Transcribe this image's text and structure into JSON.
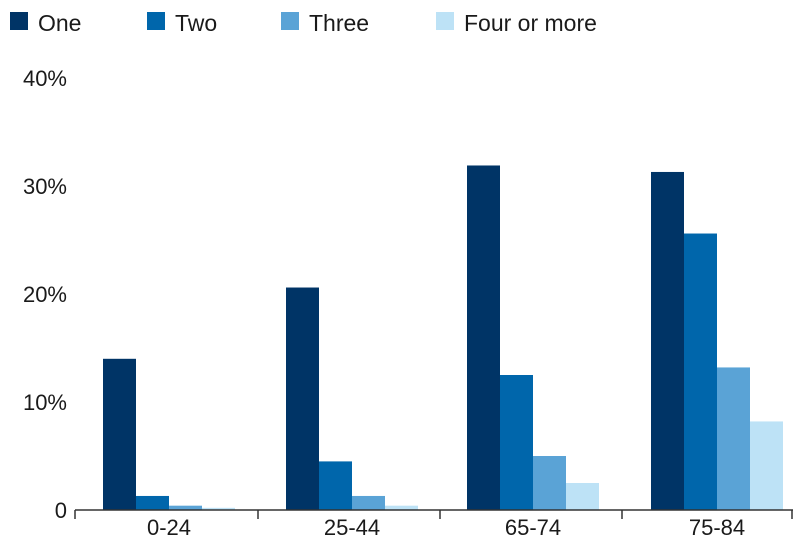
{
  "chart_data": {
    "type": "bar",
    "title": "",
    "xlabel": "",
    "ylabel": "",
    "categories": [
      "0-24",
      "25-44",
      "65-74",
      "75-84"
    ],
    "series": [
      {
        "name": "One",
        "color": "#003466",
        "values": [
          14,
          20.6,
          31.9,
          31.3
        ]
      },
      {
        "name": "Two",
        "color": "#0066ab",
        "values": [
          1.3,
          4.5,
          12.5,
          25.6
        ]
      },
      {
        "name": "Three",
        "color": "#5aa3d6",
        "values": [
          0.4,
          1.3,
          5,
          13.2
        ]
      },
      {
        "name": "Four or more",
        "color": "#bde2f6",
        "values": [
          0.2,
          0.4,
          2.5,
          8.2
        ]
      }
    ],
    "ylim": [
      0,
      40
    ],
    "yticks": [
      {
        "value": 0,
        "label": "0"
      },
      {
        "value": 10,
        "label": "10%"
      },
      {
        "value": 20,
        "label": "20%"
      },
      {
        "value": 30,
        "label": "30%"
      },
      {
        "value": 40,
        "label": "40%"
      }
    ],
    "grid": false,
    "legend_position": "top-left"
  }
}
